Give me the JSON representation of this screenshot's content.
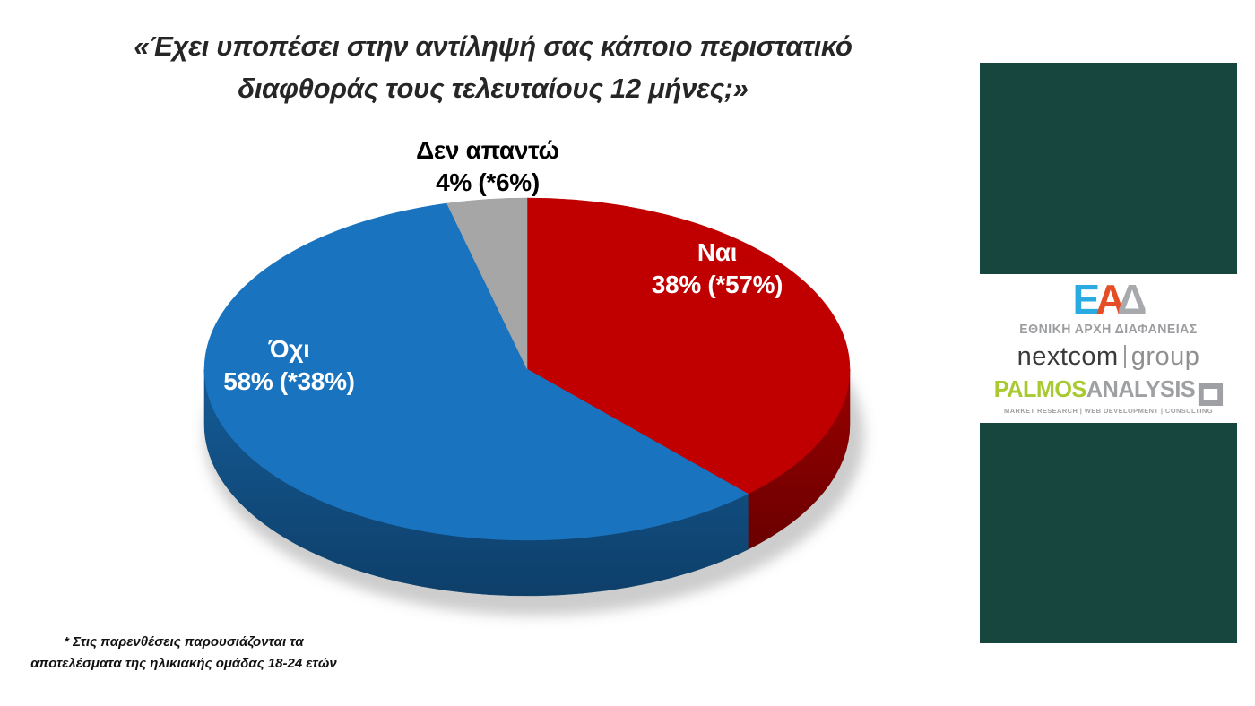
{
  "title": {
    "line1": "«Έχει υποπέσει στην αντίληψή σας κάποιο περιστατικό",
    "line2": "διαφθοράς τους τελευταίους 12 μήνες;»"
  },
  "chart_data": {
    "type": "pie",
    "style": "3d",
    "title": "«Έχει υποπέσει στην αντίληψή σας κάποιο περιστατικό διαφθοράς τους τελευταίους 12 μήνες;»",
    "unit": "%",
    "start_angle_deg": 0,
    "direction": "clockwise",
    "legend_position": "none",
    "slices": [
      {
        "label": "Ναι",
        "value": 38,
        "value_18_24": 57,
        "display": "38% (*57%)",
        "color": "#C00000"
      },
      {
        "label": "Όχι",
        "value": 58,
        "value_18_24": 38,
        "display": "58% (*38%)",
        "color": "#1973BE"
      },
      {
        "label": "Δεν απαντώ",
        "value": 4,
        "value_18_24": 6,
        "display": "4% (*6%)",
        "color": "#A6A6A6"
      }
    ],
    "footnote": "* Στις παρενθέσεις παρουσιάζονται τα αποτελέσματα της ηλικιακής ομάδας 18-24 ετών"
  },
  "footnote": {
    "line1": "* Στις παρενθέσεις παρουσιάζονται τα",
    "line2": "αποτελέσματα της ηλικιακής ομάδας 18-24 ετών"
  },
  "sidebar": {
    "panel_color": "#17463F",
    "ead": {
      "letter1": "Ε",
      "letter2": "Α",
      "letter3": "Δ",
      "letter1_color": "#29ABE2",
      "letter2_color": "#E54D26",
      "letter3_color": "#A7A9AC",
      "caption": "ΕΘΝΙΚΗ ΑΡΧΗ ΔΙΑΦΑΝΕΙΑΣ"
    },
    "nextcom": {
      "part1": "nextcom",
      "part2": "group"
    },
    "palmos": {
      "part1": "PALMOS",
      "part2": "ANALYSIS",
      "green": "#A8C92F",
      "gray": "#9EA0A3",
      "tagline": "MARKET RESEARCH | WEB DEVELOPMENT | CONSULTING"
    }
  }
}
